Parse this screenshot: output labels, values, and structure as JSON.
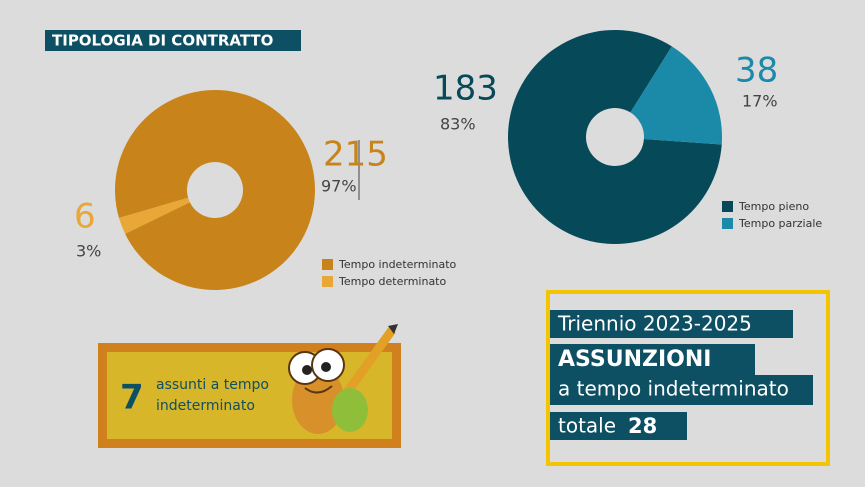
{
  "header": {
    "title": "TIPOLOGIA DI CONTRATTO"
  },
  "chart_data": [
    {
      "type": "pie",
      "categories": [
        "Tempo indeterminato",
        "Tempo determinato"
      ],
      "values": [
        215,
        6
      ],
      "share_labels": [
        "97%",
        "3%"
      ],
      "colors": [
        "#c8841a",
        "#e8a736"
      ]
    },
    {
      "type": "pie",
      "categories": [
        "Tempo pieno",
        "Tempo parziale"
      ],
      "values": [
        183,
        38
      ],
      "share_labels": [
        "83%",
        "17%"
      ],
      "colors": [
        "#064a5a",
        "#1a8aa8"
      ]
    }
  ],
  "callout": {
    "number": 7,
    "lines": [
      "assunti a tempo",
      "indeterminato"
    ]
  },
  "summary": {
    "period": "Triennio 2023-2025",
    "heading": "ASSUNZIONI",
    "subheading": "a tempo indeterminato",
    "total_label": "totale",
    "total": 28
  }
}
